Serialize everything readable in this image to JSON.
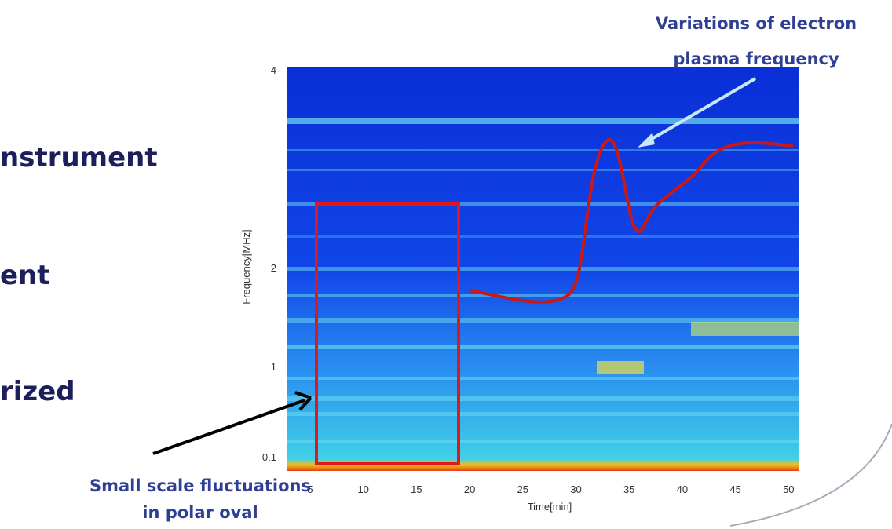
{
  "slide": {
    "fragments": [
      "nstrument",
      "ent",
      "rized"
    ]
  },
  "annotations": {
    "top": [
      "Variations of electron",
      "plasma frequency"
    ],
    "bottom": [
      "Small scale fluctuations",
      "in polar oval"
    ]
  },
  "figure": {
    "ylabel": "Frequency[MHz]",
    "xlabel": "Time[min]",
    "yticks": [
      "4",
      "2",
      "1",
      "0.1"
    ],
    "xticks": [
      "5",
      "10",
      "15",
      "20",
      "25",
      "30",
      "35",
      "40",
      "45",
      "50"
    ]
  }
}
